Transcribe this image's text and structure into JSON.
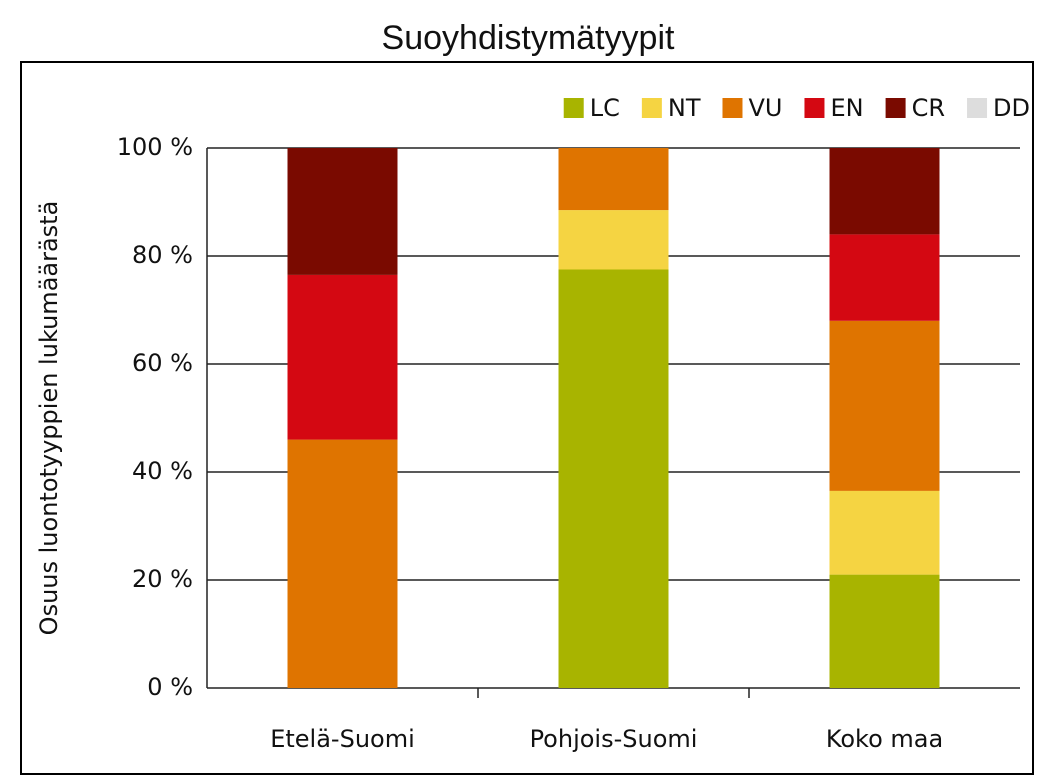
{
  "chart_data": {
    "type": "stacked_bar",
    "title": "Suoyhdistymätyypit",
    "y_label": "Osuus luontotyyppien lukumäärästä",
    "categories": [
      "Etelä-Suomi",
      "Pohjois-Suomi",
      "Koko maa"
    ],
    "series": [
      {
        "name": "LC",
        "color": "#a8b400",
        "values": [
          0,
          77.5,
          21
        ]
      },
      {
        "name": "NT",
        "color": "#f5d442",
        "values": [
          0,
          11,
          15.5
        ]
      },
      {
        "name": "VU",
        "color": "#df7400",
        "values": [
          46,
          11.5,
          31.5
        ]
      },
      {
        "name": "EN",
        "color": "#d40812",
        "values": [
          30.5,
          0,
          16
        ]
      },
      {
        "name": "CR",
        "color": "#7a0a00",
        "values": [
          23.5,
          0,
          16
        ]
      },
      {
        "name": "DD",
        "color": "#dddddd",
        "values": [
          0,
          0,
          0
        ]
      }
    ],
    "ylim": [
      0,
      100
    ],
    "yticks": [
      {
        "value": 0,
        "label": "0 %"
      },
      {
        "value": 20,
        "label": "20 %"
      },
      {
        "value": 40,
        "label": "40 %"
      },
      {
        "value": 60,
        "label": "60 %"
      },
      {
        "value": 80,
        "label": "80 %"
      },
      {
        "value": 100,
        "label": "100 %"
      }
    ],
    "grid": true,
    "legend": "top-right"
  }
}
